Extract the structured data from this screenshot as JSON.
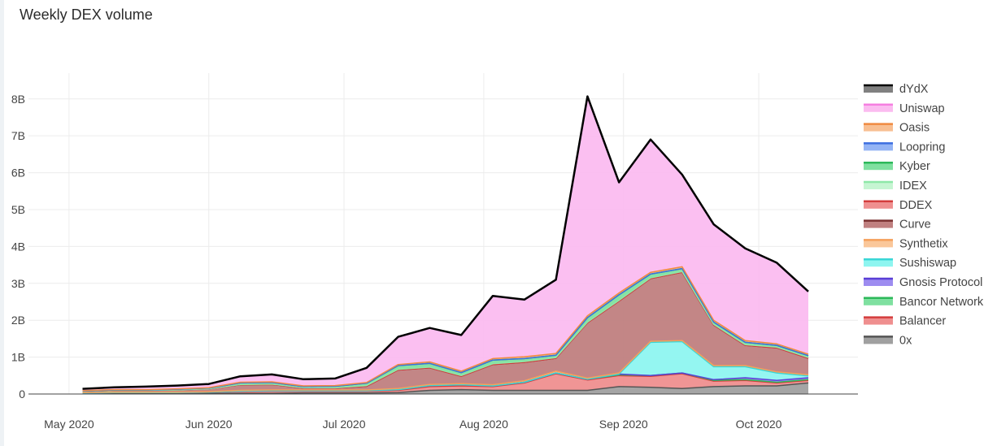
{
  "chart_data": {
    "type": "area",
    "stacked": true,
    "title": "Weekly DEX volume",
    "xlabel": "",
    "ylabel": "",
    "ylim": [
      0,
      8.7
    ],
    "x": [
      "2020-05-04",
      "2020-05-11",
      "2020-05-18",
      "2020-05-25",
      "2020-06-01",
      "2020-06-08",
      "2020-06-15",
      "2020-06-22",
      "2020-06-29",
      "2020-07-06",
      "2020-07-13",
      "2020-07-20",
      "2020-07-27",
      "2020-08-03",
      "2020-08-10",
      "2020-08-17",
      "2020-08-24",
      "2020-08-31",
      "2020-09-07",
      "2020-09-14",
      "2020-09-21",
      "2020-09-28",
      "2020-10-05",
      "2020-10-12"
    ],
    "x_ticks": [
      {
        "date": "2020-05-01",
        "label": "May 2020"
      },
      {
        "date": "2020-06-01",
        "label": "Jun 2020"
      },
      {
        "date": "2020-07-01",
        "label": "Jul 2020"
      },
      {
        "date": "2020-08-01",
        "label": "Aug 2020"
      },
      {
        "date": "2020-09-01",
        "label": "Sep 2020"
      },
      {
        "date": "2020-10-01",
        "label": "Oct 2020"
      }
    ],
    "x_range": [
      "2020-04-22",
      "2020-10-23"
    ],
    "y_ticks": [
      {
        "value": 0,
        "label": "0"
      },
      {
        "value": 1,
        "label": "1B"
      },
      {
        "value": 2,
        "label": "2B"
      },
      {
        "value": 3,
        "label": "3B"
      },
      {
        "value": 4,
        "label": "4B"
      },
      {
        "value": 5,
        "label": "5B"
      },
      {
        "value": 6,
        "label": "6B"
      },
      {
        "value": 7,
        "label": "7B"
      },
      {
        "value": 8,
        "label": "8B"
      }
    ],
    "units": "billion USD",
    "series": [
      {
        "name": "0x",
        "color": "#555555",
        "fill": "#a0a0a0",
        "values": [
          0.02,
          0.02,
          0.02,
          0.02,
          0.02,
          0.02,
          0.02,
          0.03,
          0.03,
          0.03,
          0.04,
          0.1,
          0.12,
          0.1,
          0.1,
          0.1,
          0.1,
          0.2,
          0.18,
          0.15,
          0.2,
          0.22,
          0.22,
          0.3
        ]
      },
      {
        "name": "Balancer",
        "color": "#d43d3d",
        "fill": "#ef8f8f",
        "values": [
          0.01,
          0.02,
          0.02,
          0.02,
          0.03,
          0.05,
          0.06,
          0.05,
          0.05,
          0.05,
          0.06,
          0.1,
          0.1,
          0.1,
          0.2,
          0.45,
          0.28,
          0.3,
          0.3,
          0.4,
          0.15,
          0.15,
          0.08,
          0.07
        ]
      },
      {
        "name": "Bancor Network",
        "color": "#2db85a",
        "fill": "#7fe0a0",
        "values": [
          0.0,
          0.0,
          0.0,
          0.0,
          0.0,
          0.01,
          0.01,
          0.01,
          0.01,
          0.01,
          0.02,
          0.03,
          0.03,
          0.02,
          0.02,
          0.02,
          0.02,
          0.02,
          0.02,
          0.02,
          0.02,
          0.02,
          0.02,
          0.02
        ]
      },
      {
        "name": "Gnosis Protocol",
        "color": "#5a3fd6",
        "fill": "#9d8cf0",
        "values": [
          0.0,
          0.0,
          0.0,
          0.0,
          0.0,
          0.0,
          0.0,
          0.0,
          0.0,
          0.0,
          0.0,
          0.0,
          0.0,
          0.0,
          0.0,
          0.0,
          0.0,
          0.02,
          0.0,
          0.0,
          0.02,
          0.05,
          0.05,
          0.05
        ]
      },
      {
        "name": "Sushiswap",
        "color": "#3ad6d6",
        "fill": "#8ef5f0",
        "values": [
          0.0,
          0.0,
          0.0,
          0.0,
          0.0,
          0.0,
          0.0,
          0.0,
          0.0,
          0.0,
          0.0,
          0.0,
          0.0,
          0.0,
          0.0,
          0.0,
          0.0,
          0.0,
          0.9,
          0.85,
          0.35,
          0.3,
          0.2,
          0.05
        ]
      },
      {
        "name": "Synthetix",
        "color": "#f5a05a",
        "fill": "#fac79a",
        "values": [
          0.01,
          0.01,
          0.01,
          0.01,
          0.01,
          0.02,
          0.02,
          0.02,
          0.02,
          0.02,
          0.03,
          0.03,
          0.03,
          0.03,
          0.04,
          0.05,
          0.03,
          0.03,
          0.03,
          0.03,
          0.03,
          0.03,
          0.03,
          0.03
        ]
      },
      {
        "name": "Curve",
        "color": "#7a3030",
        "fill": "#c08080",
        "values": [
          0.03,
          0.05,
          0.05,
          0.06,
          0.08,
          0.15,
          0.15,
          0.05,
          0.05,
          0.1,
          0.5,
          0.45,
          0.2,
          0.55,
          0.5,
          0.35,
          1.5,
          1.95,
          1.7,
          1.85,
          1.1,
          0.55,
          0.65,
          0.45
        ]
      },
      {
        "name": "DDEX",
        "color": "#d43d3d",
        "fill": "#ef8f8f",
        "values": [
          0.0,
          0.0,
          0.0,
          0.0,
          0.0,
          0.0,
          0.0,
          0.0,
          0.0,
          0.0,
          0.0,
          0.0,
          0.0,
          0.0,
          0.0,
          0.0,
          0.0,
          0.0,
          0.0,
          0.0,
          0.0,
          0.0,
          0.0,
          0.0
        ]
      },
      {
        "name": "IDEX",
        "color": "#8ee8a8",
        "fill": "#c6f5d2",
        "values": [
          0.0,
          0.0,
          0.0,
          0.0,
          0.0,
          0.01,
          0.01,
          0.01,
          0.01,
          0.02,
          0.02,
          0.02,
          0.02,
          0.02,
          0.02,
          0.02,
          0.02,
          0.02,
          0.02,
          0.02,
          0.02,
          0.02,
          0.02,
          0.02
        ]
      },
      {
        "name": "Kyber",
        "color": "#2db85a",
        "fill": "#7fe0a0",
        "values": [
          0.01,
          0.01,
          0.01,
          0.02,
          0.02,
          0.04,
          0.04,
          0.03,
          0.04,
          0.06,
          0.1,
          0.1,
          0.08,
          0.1,
          0.08,
          0.06,
          0.12,
          0.15,
          0.1,
          0.08,
          0.06,
          0.06,
          0.05,
          0.05
        ]
      },
      {
        "name": "Loopring",
        "color": "#3d6fe0",
        "fill": "#94b4f5",
        "values": [
          0.0,
          0.0,
          0.0,
          0.0,
          0.0,
          0.0,
          0.0,
          0.0,
          0.0,
          0.0,
          0.0,
          0.0,
          0.0,
          0.0,
          0.0,
          0.0,
          0.0,
          0.0,
          0.0,
          0.0,
          0.0,
          0.0,
          0.0,
          0.0
        ]
      },
      {
        "name": "Oasis",
        "color": "#f08a40",
        "fill": "#f8bf92",
        "values": [
          0.01,
          0.01,
          0.01,
          0.01,
          0.01,
          0.02,
          0.02,
          0.02,
          0.02,
          0.02,
          0.03,
          0.04,
          0.04,
          0.04,
          0.05,
          0.05,
          0.05,
          0.05,
          0.05,
          0.05,
          0.05,
          0.05,
          0.04,
          0.04
        ]
      },
      {
        "name": "Uniswap",
        "color": "#f57ee0",
        "fill": "#fbbcf0",
        "values": [
          0.05,
          0.06,
          0.08,
          0.09,
          0.1,
          0.16,
          0.2,
          0.18,
          0.19,
          0.4,
          0.75,
          0.92,
          0.98,
          1.7,
          1.55,
          2.0,
          5.95,
          3.0,
          3.6,
          2.5,
          2.6,
          2.5,
          2.2,
          1.7
        ]
      },
      {
        "name": "dYdX",
        "color": "#000000",
        "fill": "#808080",
        "values": [
          0.0,
          0.0,
          0.0,
          0.0,
          0.0,
          0.0,
          0.0,
          0.0,
          0.0,
          0.0,
          0.0,
          0.0,
          0.0,
          0.0,
          0.0,
          0.0,
          0.0,
          0.0,
          0.0,
          0.0,
          0.0,
          0.0,
          0.0,
          0.0
        ]
      }
    ],
    "legend_position": "right"
  }
}
